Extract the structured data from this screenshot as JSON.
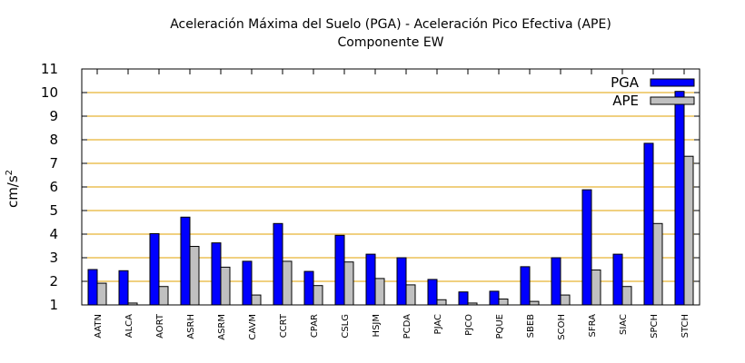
{
  "chart_data": {
    "type": "bar",
    "title_line1": "Aceleración Máxima del Suelo (PGA) -  Aceleración Pico Efectiva (APE)",
    "title_line2": "Componente EW",
    "ylabel": "cm/s",
    "ylabel_superscript": "2",
    "xlabel": "",
    "ylim": [
      1,
      11
    ],
    "yticks": [
      "1",
      "2",
      "3",
      "4",
      "5",
      "6",
      "7",
      "8",
      "9",
      "10",
      "11"
    ],
    "grid": "horizontal",
    "legend_position": "top-right",
    "categories": [
      "AATN",
      "ALCA",
      "AORT",
      "ASRH",
      "ASRM",
      "CAVM",
      "CCRT",
      "CPAR",
      "CSLG",
      "HSJM",
      "PCDA",
      "PJAC",
      "PJCO",
      "PQUE",
      "SBEB",
      "SCOH",
      "SFRA",
      "SIAC",
      "SPCH",
      "STCH"
    ],
    "series": [
      {
        "name": "PGA",
        "color": "#0000ff",
        "values": [
          2.5,
          2.45,
          4.02,
          4.72,
          3.63,
          2.85,
          4.45,
          2.42,
          3.95,
          3.15,
          3.0,
          2.08,
          1.55,
          1.58,
          2.62,
          3.0,
          5.88,
          3.15,
          7.85,
          10.05
        ]
      },
      {
        "name": "APE",
        "color": "#c0c0c0",
        "values": [
          1.92,
          1.08,
          1.78,
          3.48,
          2.6,
          1.42,
          2.85,
          1.82,
          2.82,
          2.12,
          1.85,
          1.22,
          1.08,
          1.25,
          1.15,
          1.42,
          2.48,
          1.78,
          4.45,
          7.3
        ]
      }
    ]
  }
}
